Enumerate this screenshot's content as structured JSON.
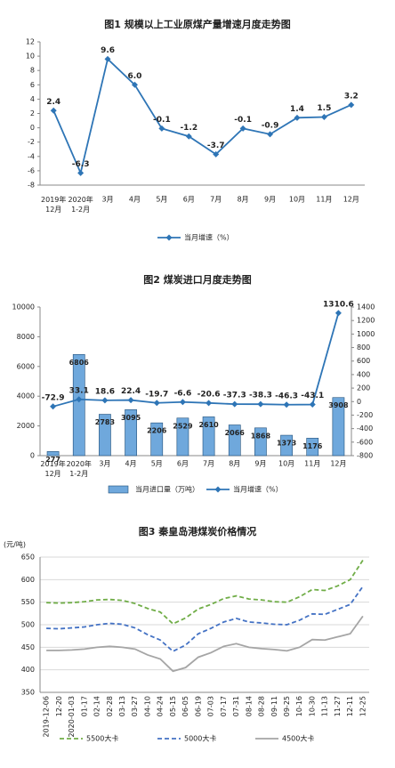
{
  "chart_data": [
    {
      "type": "line",
      "title": "图1  规模以上工业原煤产量增速月度走势图",
      "categories": [
        "2019年\n12月",
        "2020年\n1-2月",
        "3月",
        "4月",
        "5月",
        "6月",
        "7月",
        "8月",
        "9月",
        "10月",
        "11月",
        "12月"
      ],
      "series": [
        {
          "name": "当月增速（%）",
          "color": "#2e75b6",
          "marker": "diamond",
          "values": [
            2.4,
            -6.3,
            9.6,
            6.0,
            -0.1,
            -1.2,
            -3.7,
            -0.1,
            -0.9,
            1.4,
            1.5,
            3.2
          ],
          "value_labels": [
            "2.4",
            "-6.3",
            "9.6",
            "6.0",
            "-0.1",
            "-1.2",
            "-3.7",
            "-0.1",
            "-0.9",
            "1.4",
            "1.5",
            "3.2"
          ]
        }
      ],
      "ylim": [
        -8,
        12
      ],
      "yticks": [
        -8,
        -6,
        -4,
        -2,
        0,
        2,
        4,
        6,
        8,
        10,
        12
      ],
      "grid": false
    },
    {
      "type": "bar",
      "title": "图2  煤炭进口月度走势图",
      "categories": [
        "2019年\n12月",
        "2020年\n1-2月",
        "3月",
        "4月",
        "5月",
        "6月",
        "7月",
        "8月",
        "9月",
        "10月",
        "11月",
        "12月"
      ],
      "series": [
        {
          "name": "当月进口量（万吨）",
          "type": "bar",
          "color": "#6fa8dc",
          "values": [
            277,
            6806,
            2783,
            3095,
            2206,
            2529,
            2610,
            2066,
            1868,
            1373,
            1176,
            3908
          ]
        },
        {
          "name": "当月增速（%）",
          "type": "line",
          "axis": "y2",
          "color": "#2e75b6",
          "marker": "diamond",
          "values": [
            -72.9,
            33.1,
            18.6,
            22.4,
            -19.7,
            -6.6,
            -20.6,
            -37.3,
            -38.3,
            -46.3,
            -43.1,
            1310.6
          ]
        }
      ],
      "ylim": [
        0,
        10000
      ],
      "yticks": [
        0,
        2000,
        4000,
        6000,
        8000,
        10000
      ],
      "y2lim": [
        -800,
        1400
      ],
      "y2ticks": [
        -800,
        -600,
        -400,
        -200,
        0,
        200,
        400,
        600,
        800,
        1000,
        1200,
        1400
      ],
      "grid": false
    },
    {
      "type": "line",
      "title": "图3  秦皇岛港煤炭价格情况",
      "y_label": "(元/吨)",
      "categories": [
        "2019-12-06",
        "12-20",
        "2020-01-03",
        "01-17",
        "02-14",
        "02-28",
        "03-13",
        "03-27",
        "04-10",
        "04-24",
        "05-15",
        "06-05",
        "06-19",
        "07-03",
        "07-17",
        "07-31",
        "08-14",
        "08-28",
        "09-11",
        "09-25",
        "10-16",
        "10-30",
        "11-13",
        "11-27",
        "12-11",
        "12-25"
      ],
      "series": [
        {
          "name": "5500大卡",
          "color": "#70ad47",
          "linestyle": "dashed",
          "values": [
            549,
            548,
            549,
            551,
            555,
            556,
            554,
            547,
            536,
            528,
            502,
            515,
            535,
            545,
            558,
            564,
            557,
            555,
            551,
            550,
            562,
            578,
            576,
            586,
            600,
            643
          ]
        },
        {
          "name": "5000大卡",
          "color": "#4472c4",
          "linestyle": "dashed",
          "values": [
            492,
            491,
            493,
            495,
            500,
            503,
            501,
            493,
            478,
            466,
            441,
            455,
            480,
            492,
            506,
            514,
            506,
            504,
            501,
            500,
            510,
            524,
            523,
            534,
            545,
            585
          ]
        },
        {
          "name": "4500大卡",
          "color": "#a5a5a5",
          "linestyle": "solid",
          "values": [
            443,
            443,
            444,
            446,
            450,
            452,
            450,
            446,
            433,
            424,
            397,
            405,
            428,
            438,
            452,
            458,
            450,
            447,
            445,
            442,
            450,
            467,
            466,
            473,
            480,
            519
          ]
        }
      ],
      "ylim": [
        350,
        650
      ],
      "yticks": [
        350,
        400,
        450,
        500,
        550,
        600,
        650
      ],
      "grid": true
    }
  ]
}
